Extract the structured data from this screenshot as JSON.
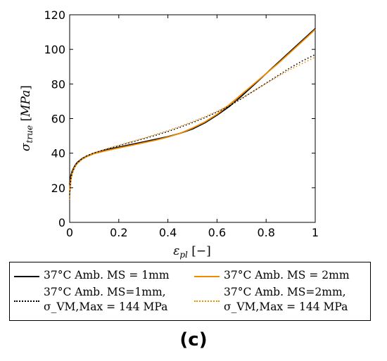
{
  "chart_data": {
    "type": "line",
    "xlabel": "ε_pl [−]",
    "ylabel": "σ_true [MPa]",
    "xlim": [
      0,
      1
    ],
    "ylim": [
      0,
      120
    ],
    "xticks": [
      "0",
      "0.2",
      "0.4",
      "0.6",
      "0.8",
      "1"
    ],
    "yticks": [
      "0",
      "20",
      "40",
      "60",
      "80",
      "100",
      "120"
    ],
    "grid": false,
    "legend_position": "bottom",
    "series": [
      {
        "name": "37°C Amb. MS = 1mm",
        "color": "#000000",
        "style": "solid",
        "x": [
          0,
          0.005,
          0.01,
          0.02,
          0.03,
          0.05,
          0.07,
          0.1,
          0.15,
          0.2,
          0.25,
          0.3,
          0.35,
          0.4,
          0.45,
          0.5,
          0.55,
          0.6,
          0.65,
          0.7,
          0.75,
          0.8,
          0.85,
          0.9,
          0.95,
          1.0
        ],
        "y": [
          22,
          27,
          29.5,
          32.5,
          34.5,
          36.8,
          38.3,
          40,
          42,
          43.5,
          45,
          46.5,
          48,
          49.5,
          51.5,
          54,
          57.5,
          62,
          67,
          73,
          79.5,
          86,
          92.5,
          99,
          105.5,
          112
        ]
      },
      {
        "name": "37°C Amb. MS = 2mm",
        "color": "#f08c00",
        "style": "solid",
        "x": [
          0,
          0.005,
          0.01,
          0.02,
          0.03,
          0.05,
          0.07,
          0.1,
          0.15,
          0.2,
          0.25,
          0.3,
          0.35,
          0.4,
          0.45,
          0.5,
          0.55,
          0.6,
          0.65,
          0.7,
          0.75,
          0.8,
          0.85,
          0.9,
          0.95,
          1.0
        ],
        "y": [
          18,
          25,
          28.5,
          32,
          34,
          36.5,
          38,
          39.8,
          41.5,
          43,
          44.5,
          46,
          47.5,
          49.3,
          51.5,
          54.5,
          58,
          62.5,
          68,
          74,
          80,
          86,
          92,
          98.5,
          105,
          111.5
        ]
      },
      {
        "name": "37°C Amb. MS=1mm, σ_VM,Max = 144 MPa",
        "color": "#000000",
        "style": "dotted",
        "x": [
          0,
          0.005,
          0.01,
          0.02,
          0.03,
          0.05,
          0.07,
          0.1,
          0.15,
          0.2,
          0.25,
          0.3,
          0.35,
          0.4,
          0.45,
          0.5,
          0.55,
          0.6,
          0.65,
          0.7,
          0.75,
          0.8,
          0.85,
          0.9,
          0.95,
          1.0
        ],
        "y": [
          16,
          25,
          28.5,
          32,
          34.3,
          36.8,
          38.5,
          40.2,
          42.3,
          44.3,
          46.3,
          48.3,
          50.3,
          52.5,
          55,
          57.7,
          60.5,
          63.8,
          67.3,
          71.5,
          76,
          80.5,
          85,
          89.5,
          93.5,
          97
        ]
      },
      {
        "name": "37°C Amb. MS=2mm, σ_VM,Max = 144 MPa",
        "color": "#f08c00",
        "style": "dotted",
        "x": [
          0,
          0.005,
          0.01,
          0.02,
          0.03,
          0.05,
          0.07,
          0.1,
          0.15,
          0.2,
          0.25,
          0.3,
          0.35,
          0.4,
          0.45,
          0.5,
          0.55,
          0.6,
          0.65,
          0.7,
          0.75,
          0.8,
          0.85,
          0.9,
          0.95,
          1.0
        ],
        "y": [
          13,
          24,
          28,
          31.5,
          34,
          36.5,
          38.3,
          40.2,
          42.5,
          44.6,
          46.6,
          48.6,
          50.8,
          53,
          55.5,
          58.2,
          61,
          64.2,
          67.8,
          71.8,
          76,
          80.3,
          84.5,
          88.5,
          92,
          95.5
        ]
      }
    ]
  },
  "legend": {
    "entries": [
      {
        "line1": "37°C Amb. MS = 1mm",
        "line2": ""
      },
      {
        "line1": "37°C Amb. MS = 2mm",
        "line2": ""
      },
      {
        "line1": "37°C Amb. MS=1mm,",
        "line2": "σ_VM,Max = 144 MPa"
      },
      {
        "line1": "37°C Amb. MS=2mm,",
        "line2": "σ_VM,Max = 144 MPa"
      }
    ]
  },
  "panel_label": "(c)"
}
